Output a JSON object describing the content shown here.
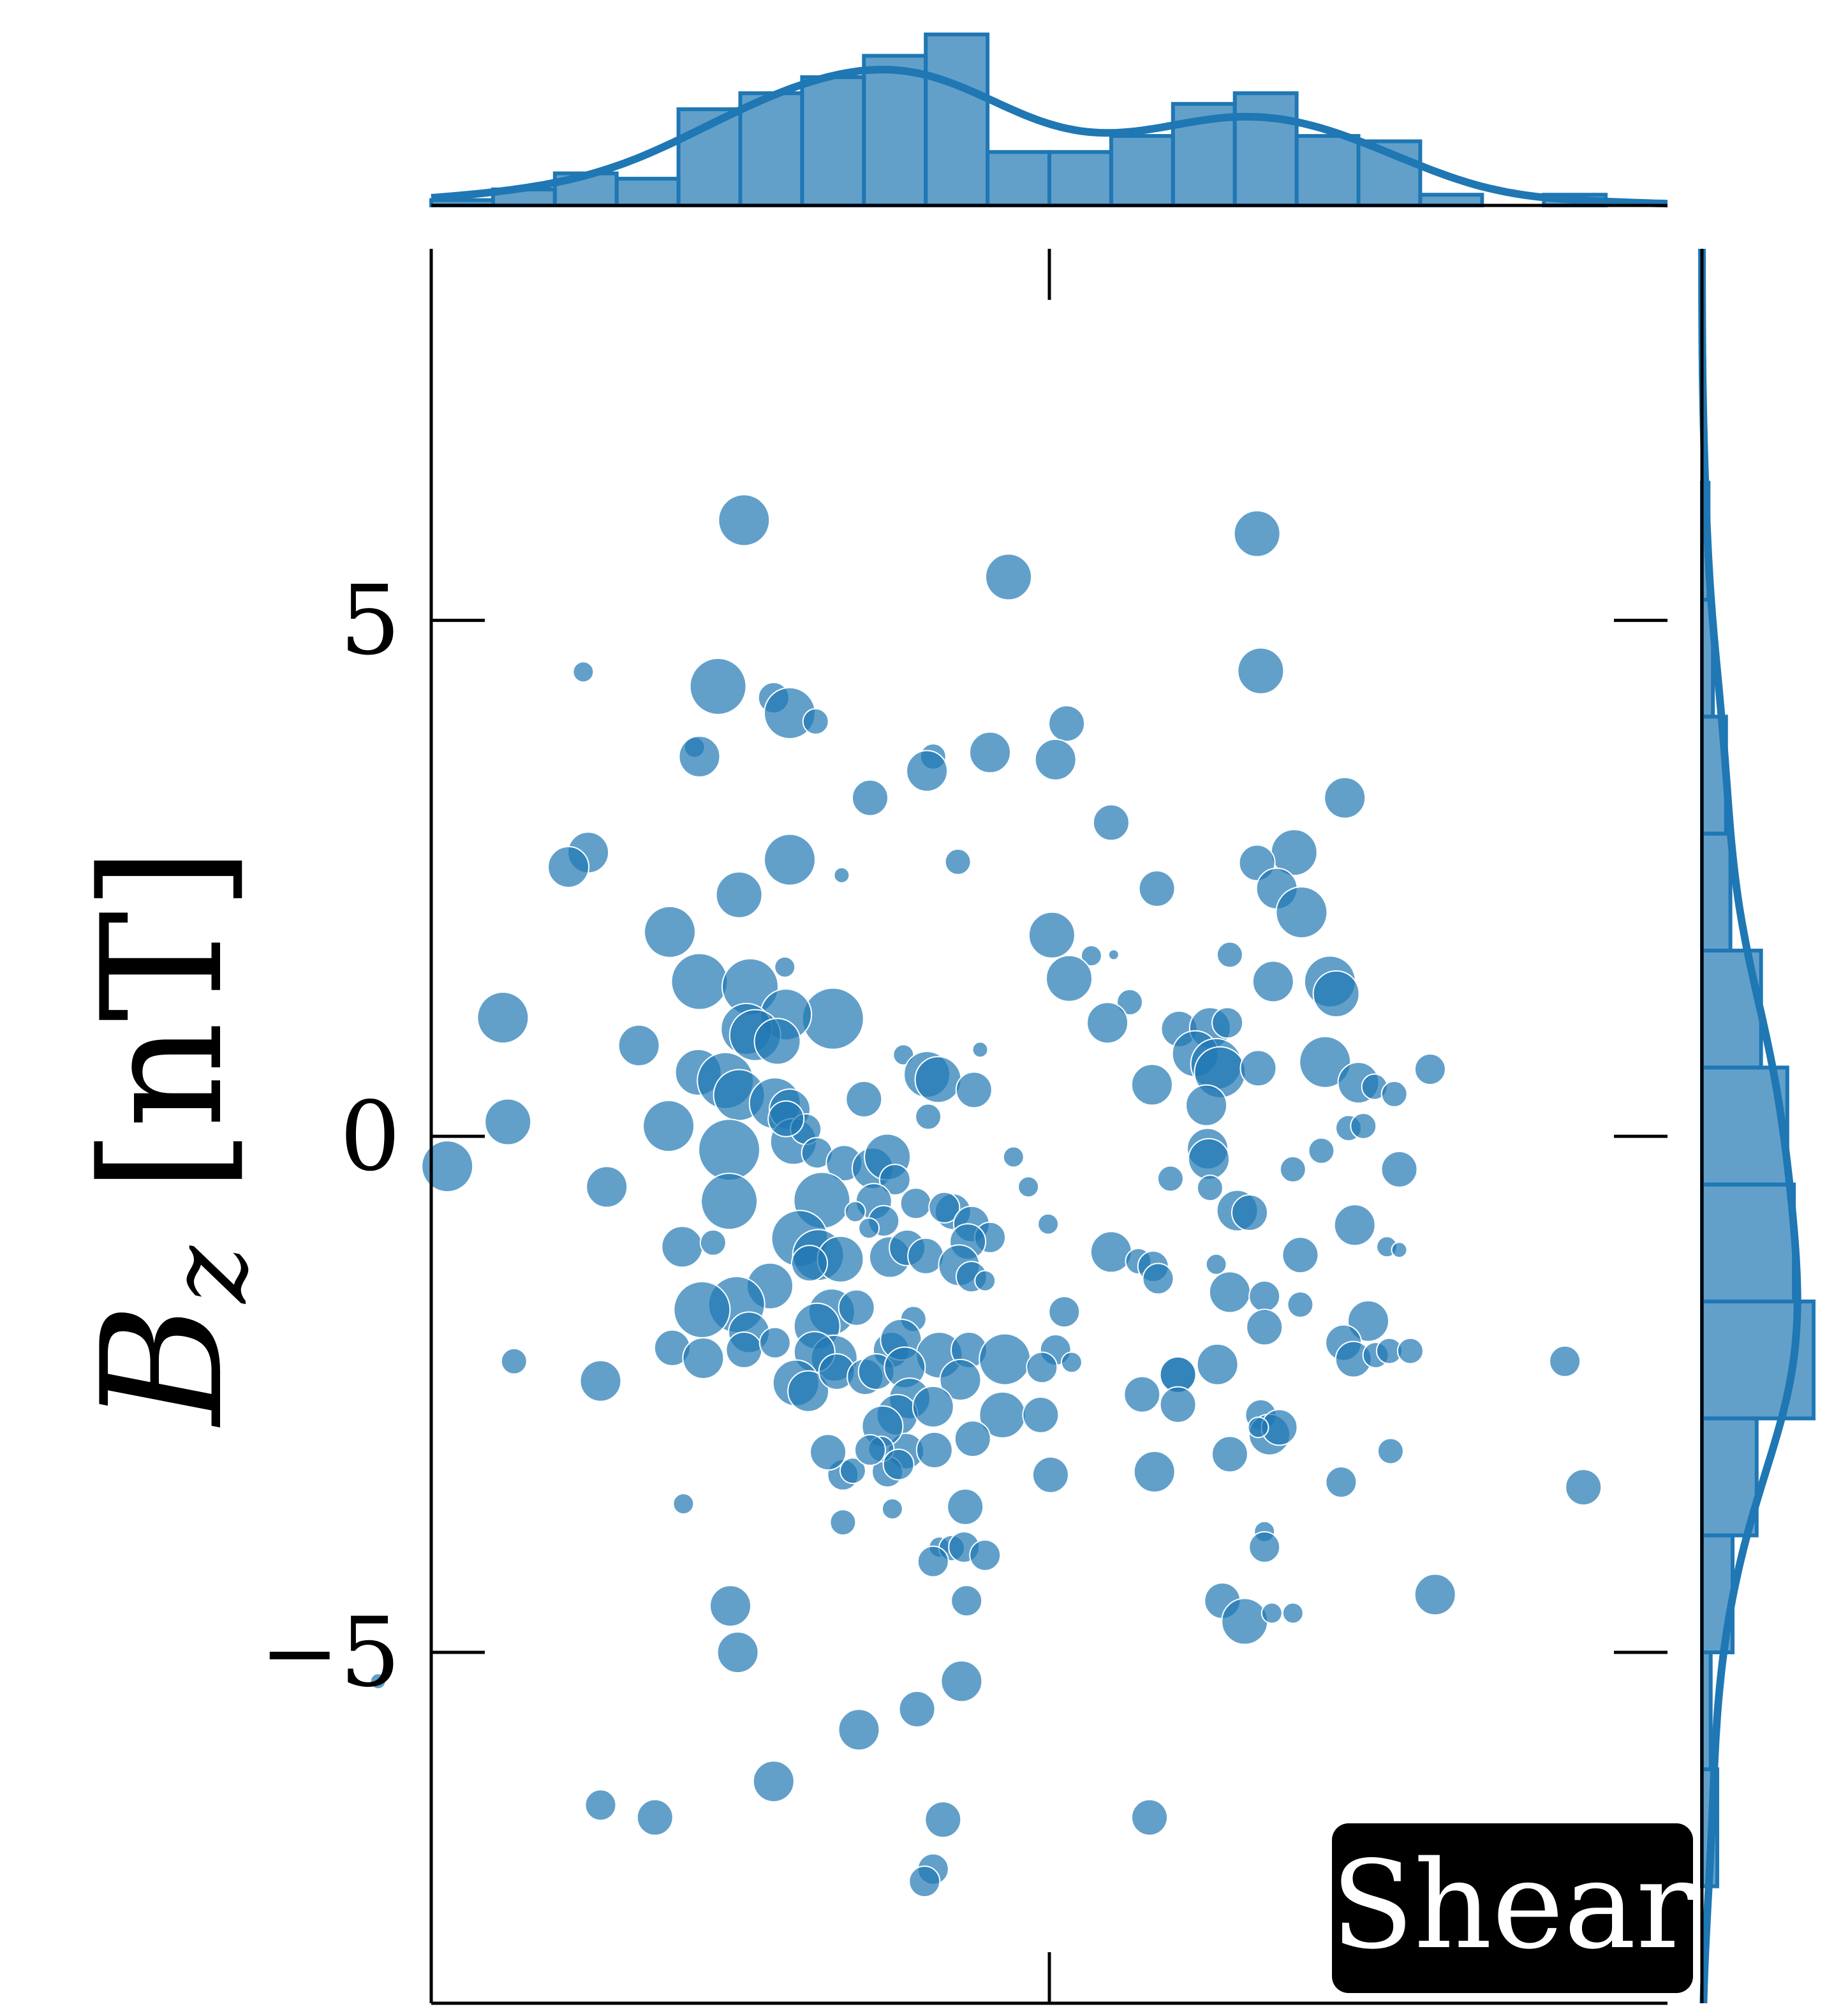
{
  "chart_data": {
    "type": "scatter",
    "ylabel": "B_z [nT]",
    "ylabel_parts": {
      "base": "B",
      "sub": "z",
      "unit": "[nT]"
    },
    "ylim": [
      -8.4,
      8.6
    ],
    "xlim": [
      -0.5,
      0.5
    ],
    "y_ticks": [
      5,
      0,
      -5
    ],
    "y_tick_labels": [
      "5",
      "0",
      "−5"
    ],
    "badge": "Shear",
    "marginal_x": {
      "type": "histogram+kde",
      "bins": 20
    },
    "marginal_y": {
      "type": "histogram+kde",
      "bins": 15
    },
    "colors": {
      "points": "#1f77b4",
      "badge_bg": "#000000",
      "badge_text": "#ffffff"
    },
    "points": [
      {
        "x": -0.247,
        "y": 5.97,
        "s": 0.9
      },
      {
        "x": 0.168,
        "y": 5.84,
        "s": 0.8
      },
      {
        "x": -0.033,
        "y": 5.42,
        "s": 0.8
      },
      {
        "x": -0.377,
        "y": 4.5,
        "s": 0.3
      },
      {
        "x": -0.268,
        "y": 4.36,
        "s": 1.0
      },
      {
        "x": 0.171,
        "y": 4.51,
        "s": 0.8
      },
      {
        "x": -0.223,
        "y": 4.25,
        "s": 0.5
      },
      {
        "x": -0.21,
        "y": 4.1,
        "s": 0.9
      },
      {
        "x": -0.189,
        "y": 4.02,
        "s": 0.4
      },
      {
        "x": 0.014,
        "y": 4.0,
        "s": 0.6
      },
      {
        "x": -0.287,
        "y": 3.77,
        "s": 0.3
      },
      {
        "x": -0.283,
        "y": 3.68,
        "s": 0.7
      },
      {
        "x": -0.094,
        "y": 3.68,
        "s": 0.4
      },
      {
        "x": -0.048,
        "y": 3.72,
        "s": 0.7
      },
      {
        "x": -0.099,
        "y": 3.54,
        "s": 0.7
      },
      {
        "x": 0.005,
        "y": 3.65,
        "s": 0.7
      },
      {
        "x": -0.145,
        "y": 3.28,
        "s": 0.6
      },
      {
        "x": 0.239,
        "y": 3.28,
        "s": 0.7
      },
      {
        "x": 0.05,
        "y": 3.04,
        "s": 0.6
      },
      {
        "x": -0.21,
        "y": 2.68,
        "s": 0.9
      },
      {
        "x": -0.373,
        "y": 2.75,
        "s": 0.7
      },
      {
        "x": -0.389,
        "y": 2.61,
        "s": 0.7
      },
      {
        "x": -0.074,
        "y": 2.66,
        "s": 0.4
      },
      {
        "x": 0.198,
        "y": 2.75,
        "s": 0.8
      },
      {
        "x": 0.168,
        "y": 2.65,
        "s": 0.6
      },
      {
        "x": -0.168,
        "y": 2.53,
        "s": 0.2
      },
      {
        "x": -0.251,
        "y": 2.34,
        "s": 0.8
      },
      {
        "x": 0.087,
        "y": 2.4,
        "s": 0.6
      },
      {
        "x": 0.184,
        "y": 2.4,
        "s": 0.7
      },
      {
        "x": 0.204,
        "y": 2.17,
        "s": 0.9
      },
      {
        "x": -0.307,
        "y": 1.98,
        "s": 0.9
      },
      {
        "x": 0.002,
        "y": 1.95,
        "s": 0.8
      },
      {
        "x": 0.034,
        "y": 1.75,
        "s": 0.3
      },
      {
        "x": 0.052,
        "y": 1.76,
        "s": 0.1
      },
      {
        "x": 0.146,
        "y": 1.76,
        "s": 0.4
      },
      {
        "x": -0.214,
        "y": 1.64,
        "s": 0.3
      },
      {
        "x": -0.283,
        "y": 1.5,
        "s": 1.0
      },
      {
        "x": -0.242,
        "y": 1.45,
        "s": 1.0
      },
      {
        "x": 0.016,
        "y": 1.53,
        "s": 0.8
      },
      {
        "x": 0.181,
        "y": 1.5,
        "s": 0.7
      },
      {
        "x": 0.227,
        "y": 1.5,
        "s": 0.9
      },
      {
        "x": 0.232,
        "y": 1.38,
        "s": 0.8
      },
      {
        "x": -0.175,
        "y": 1.14,
        "s": 1.1
      },
      {
        "x": -0.213,
        "y": 1.18,
        "s": 0.9
      },
      {
        "x": -0.245,
        "y": 1.04,
        "s": 0.9
      },
      {
        "x": -0.442,
        "y": 1.15,
        "s": 0.9
      },
      {
        "x": 0.065,
        "y": 1.3,
        "s": 0.4
      },
      {
        "x": 0.047,
        "y": 1.1,
        "s": 0.7
      },
      {
        "x": 0.105,
        "y": 1.04,
        "s": 0.6
      },
      {
        "x": 0.13,
        "y": 1.05,
        "s": 0.7
      },
      {
        "x": 0.144,
        "y": 1.1,
        "s": 0.5
      },
      {
        "x": -0.238,
        "y": 0.98,
        "s": 0.9
      },
      {
        "x": -0.22,
        "y": 0.92,
        "s": 0.8
      },
      {
        "x": -0.118,
        "y": 0.79,
        "s": 0.3
      },
      {
        "x": -0.056,
        "y": 0.84,
        "s": 0.2
      },
      {
        "x": -0.332,
        "y": 0.88,
        "s": 0.7
      },
      {
        "x": -0.284,
        "y": 0.62,
        "s": 0.8
      },
      {
        "x": -0.262,
        "y": 0.54,
        "s": 1.0
      },
      {
        "x": -0.099,
        "y": 0.6,
        "s": 0.8
      },
      {
        "x": -0.09,
        "y": 0.55,
        "s": 0.8
      },
      {
        "x": -0.061,
        "y": 0.45,
        "s": 0.6
      },
      {
        "x": 0.083,
        "y": 0.5,
        "s": 0.7
      },
      {
        "x": 0.118,
        "y": 0.8,
        "s": 0.8
      },
      {
        "x": 0.135,
        "y": 0.7,
        "s": 0.9
      },
      {
        "x": 0.138,
        "y": 0.62,
        "s": 0.9
      },
      {
        "x": 0.169,
        "y": 0.66,
        "s": 0.6
      },
      {
        "x": 0.223,
        "y": 0.72,
        "s": 0.9
      },
      {
        "x": 0.25,
        "y": 0.52,
        "s": 0.7
      },
      {
        "x": 0.263,
        "y": 0.48,
        "s": 0.4
      },
      {
        "x": 0.279,
        "y": 0.41,
        "s": 0.4
      },
      {
        "x": 0.308,
        "y": 0.65,
        "s": 0.5
      },
      {
        "x": -0.438,
        "y": 0.14,
        "s": 0.8
      },
      {
        "x": -0.308,
        "y": 0.1,
        "s": 0.9
      },
      {
        "x": -0.251,
        "y": 0.4,
        "s": 0.9
      },
      {
        "x": -0.222,
        "y": 0.32,
        "s": 0.9
      },
      {
        "x": -0.21,
        "y": 0.26,
        "s": 0.7
      },
      {
        "x": -0.15,
        "y": 0.36,
        "s": 0.6
      },
      {
        "x": -0.098,
        "y": 0.19,
        "s": 0.4
      },
      {
        "x": 0.127,
        "y": 0.3,
        "s": 0.7
      },
      {
        "x": 0.242,
        "y": 0.08,
        "s": 0.4
      },
      {
        "x": 0.254,
        "y": 0.1,
        "s": 0.4
      },
      {
        "x": -0.259,
        "y": -0.13,
        "s": 1.1
      },
      {
        "x": -0.207,
        "y": -0.05,
        "s": 0.8
      },
      {
        "x": -0.197,
        "y": 0.07,
        "s": 0.5
      },
      {
        "x": -0.213,
        "y": 0.17,
        "s": 0.6
      },
      {
        "x": -0.188,
        "y": -0.16,
        "s": 0.5
      },
      {
        "x": -0.166,
        "y": -0.26,
        "s": 0.6
      },
      {
        "x": -0.143,
        "y": -0.31,
        "s": 0.7
      },
      {
        "x": -0.131,
        "y": -0.2,
        "s": 0.8
      },
      {
        "x": -0.125,
        "y": -0.42,
        "s": 0.5
      },
      {
        "x": -0.029,
        "y": -0.2,
        "s": 0.3
      },
      {
        "x": -0.017,
        "y": -0.49,
        "s": 0.3
      },
      {
        "x": 0.128,
        "y": -0.12,
        "s": 0.7
      },
      {
        "x": 0.129,
        "y": -0.22,
        "s": 0.7
      },
      {
        "x": 0.13,
        "y": -0.5,
        "s": 0.4
      },
      {
        "x": 0.197,
        "y": -0.32,
        "s": 0.4
      },
      {
        "x": 0.22,
        "y": -0.14,
        "s": 0.4
      },
      {
        "x": 0.283,
        "y": -0.32,
        "s": 0.6
      },
      {
        "x": 0.098,
        "y": -0.41,
        "s": 0.4
      },
      {
        "x": -0.487,
        "y": -0.29,
        "s": 0.9
      },
      {
        "x": -0.358,
        "y": -0.49,
        "s": 0.7
      },
      {
        "x": -0.259,
        "y": -0.63,
        "s": 1.0
      },
      {
        "x": -0.184,
        "y": -0.62,
        "s": 1.0
      },
      {
        "x": -0.142,
        "y": -0.63,
        "s": 0.6
      },
      {
        "x": -0.108,
        "y": -0.65,
        "s": 0.5
      },
      {
        "x": -0.078,
        "y": -0.73,
        "s": 0.6
      },
      {
        "x": -0.085,
        "y": -0.69,
        "s": 0.5
      },
      {
        "x": -0.134,
        "y": -0.82,
        "s": 0.5
      },
      {
        "x": -0.146,
        "y": -0.89,
        "s": 0.3
      },
      {
        "x": -0.157,
        "y": -0.73,
        "s": 0.3
      },
      {
        "x": -0.063,
        "y": -0.85,
        "s": 0.6
      },
      {
        "x": -0.048,
        "y": -0.98,
        "s": 0.5
      },
      {
        "x": -0.001,
        "y": -0.85,
        "s": 0.3
      },
      {
        "x": 0.152,
        "y": -0.72,
        "s": 0.7
      },
      {
        "x": 0.162,
        "y": -0.74,
        "s": 0.6
      },
      {
        "x": 0.247,
        "y": -0.86,
        "s": 0.7
      },
      {
        "x": 0.273,
        "y": -1.07,
        "s": 0.3
      },
      {
        "x": 0.283,
        "y": -1.1,
        "s": 0.2
      },
      {
        "x": -0.297,
        "y": -1.07,
        "s": 0.7
      },
      {
        "x": -0.272,
        "y": -1.03,
        "s": 0.4
      },
      {
        "x": -0.202,
        "y": -0.99,
        "s": 1.0
      },
      {
        "x": -0.187,
        "y": -1.15,
        "s": 0.9
      },
      {
        "x": -0.169,
        "y": -1.19,
        "s": 0.8
      },
      {
        "x": -0.194,
        "y": -1.23,
        "s": 0.6
      },
      {
        "x": -0.129,
        "y": -1.17,
        "s": 0.7
      },
      {
        "x": -0.115,
        "y": -1.08,
        "s": 0.6
      },
      {
        "x": -0.1,
        "y": -1.16,
        "s": 0.6
      },
      {
        "x": -0.066,
        "y": -1.02,
        "s": 0.6
      },
      {
        "x": -0.073,
        "y": -1.25,
        "s": 0.7
      },
      {
        "x": -0.063,
        "y": -1.36,
        "s": 0.5
      },
      {
        "x": 0.05,
        "y": -1.12,
        "s": 0.7
      },
      {
        "x": 0.072,
        "y": -1.21,
        "s": 0.4
      },
      {
        "x": 0.084,
        "y": -1.26,
        "s": 0.5
      },
      {
        "x": 0.088,
        "y": -1.38,
        "s": 0.5
      },
      {
        "x": 0.135,
        "y": -1.24,
        "s": 0.3
      },
      {
        "x": 0.203,
        "y": -1.15,
        "s": 0.6
      },
      {
        "x": -0.226,
        "y": -1.45,
        "s": 0.8
      },
      {
        "x": -0.253,
        "y": -1.63,
        "s": 1.0
      },
      {
        "x": -0.176,
        "y": -1.7,
        "s": 0.8
      },
      {
        "x": -0.156,
        "y": -1.66,
        "s": 0.6
      },
      {
        "x": -0.188,
        "y": -1.84,
        "s": 0.8
      },
      {
        "x": -0.243,
        "y": -1.9,
        "s": 0.7
      },
      {
        "x": -0.281,
        "y": -1.68,
        "s": 1.0
      },
      {
        "x": -0.11,
        "y": -1.77,
        "s": 0.4
      },
      {
        "x": -0.052,
        "y": -1.4,
        "s": 0.3
      },
      {
        "x": 0.012,
        "y": -1.7,
        "s": 0.5
      },
      {
        "x": 0.146,
        "y": -1.51,
        "s": 0.7
      },
      {
        "x": 0.174,
        "y": -1.55,
        "s": 0.5
      },
      {
        "x": 0.174,
        "y": -1.85,
        "s": 0.6
      },
      {
        "x": 0.203,
        "y": -1.63,
        "s": 0.4
      },
      {
        "x": 0.258,
        "y": -1.79,
        "s": 0.7
      },
      {
        "x": -0.305,
        "y": -2.05,
        "s": 0.6
      },
      {
        "x": -0.28,
        "y": -2.15,
        "s": 0.7
      },
      {
        "x": -0.247,
        "y": -2.07,
        "s": 0.6
      },
      {
        "x": -0.222,
        "y": -2.0,
        "s": 0.5
      },
      {
        "x": -0.174,
        "y": -2.15,
        "s": 0.8
      },
      {
        "x": -0.19,
        "y": -2.09,
        "s": 0.7
      },
      {
        "x": -0.128,
        "y": -2.07,
        "s": 0.6
      },
      {
        "x": -0.12,
        "y": -1.97,
        "s": 0.7
      },
      {
        "x": -0.089,
        "y": -2.12,
        "s": 0.8
      },
      {
        "x": -0.065,
        "y": -2.07,
        "s": 0.6
      },
      {
        "x": -0.036,
        "y": -2.16,
        "s": 0.9
      },
      {
        "x": 0.005,
        "y": -2.07,
        "s": 0.5
      },
      {
        "x": -0.006,
        "y": -2.24,
        "s": 0.5
      },
      {
        "x": 0.018,
        "y": -2.19,
        "s": 0.3
      },
      {
        "x": 0.104,
        "y": -2.31,
        "s": 0.6
      },
      {
        "x": 0.104,
        "y": -2.31,
        "s": 0.6
      },
      {
        "x": 0.136,
        "y": -2.21,
        "s": 0.7
      },
      {
        "x": 0.238,
        "y": -2.0,
        "s": 0.6
      },
      {
        "x": 0.246,
        "y": -2.16,
        "s": 0.6
      },
      {
        "x": 0.264,
        "y": -2.12,
        "s": 0.4
      },
      {
        "x": 0.275,
        "y": -2.08,
        "s": 0.4
      },
      {
        "x": 0.292,
        "y": -2.08,
        "s": 0.4
      },
      {
        "x": -0.363,
        "y": -2.37,
        "s": 0.7
      },
      {
        "x": -0.205,
        "y": -2.39,
        "s": 0.8
      },
      {
        "x": -0.195,
        "y": -2.47,
        "s": 0.7
      },
      {
        "x": -0.172,
        "y": -2.28,
        "s": 0.6
      },
      {
        "x": -0.149,
        "y": -2.33,
        "s": 0.6
      },
      {
        "x": -0.14,
        "y": -2.28,
        "s": 0.6
      },
      {
        "x": -0.117,
        "y": -2.24,
        "s": 0.7
      },
      {
        "x": -0.072,
        "y": -2.36,
        "s": 0.7
      },
      {
        "x": -0.113,
        "y": -2.54,
        "s": 0.7
      },
      {
        "x": -0.123,
        "y": -2.7,
        "s": 0.7
      },
      {
        "x": -0.094,
        "y": -2.62,
        "s": 0.7
      },
      {
        "x": -0.038,
        "y": -2.7,
        "s": 0.8
      },
      {
        "x": -0.007,
        "y": -2.7,
        "s": 0.6
      },
      {
        "x": 0.075,
        "y": -2.5,
        "s": 0.6
      },
      {
        "x": 0.104,
        "y": -2.6,
        "s": 0.6
      },
      {
        "x": 0.171,
        "y": -2.7,
        "s": 0.5
      },
      {
        "x": 0.178,
        "y": -2.89,
        "s": 0.7
      },
      {
        "x": 0.186,
        "y": -2.82,
        "s": 0.6
      },
      {
        "x": 0.169,
        "y": -2.82,
        "s": 0.3
      },
      {
        "x": -0.433,
        "y": -2.18,
        "s": 0.4
      },
      {
        "x": 0.417,
        "y": -2.18,
        "s": 0.5
      },
      {
        "x": -0.116,
        "y": -3.05,
        "s": 0.6
      },
      {
        "x": -0.135,
        "y": -2.81,
        "s": 0.7
      },
      {
        "x": -0.167,
        "y": -3.28,
        "s": 0.5
      },
      {
        "x": -0.159,
        "y": -3.24,
        "s": 0.4
      },
      {
        "x": -0.131,
        "y": -3.25,
        "s": 0.5
      },
      {
        "x": -0.136,
        "y": -3.03,
        "s": 0.4
      },
      {
        "x": -0.122,
        "y": -3.18,
        "s": 0.5
      },
      {
        "x": -0.145,
        "y": -3.04,
        "s": 0.5
      },
      {
        "x": -0.179,
        "y": -3.06,
        "s": 0.6
      },
      {
        "x": -0.093,
        "y": -3.04,
        "s": 0.6
      },
      {
        "x": -0.062,
        "y": -2.93,
        "s": 0.6
      },
      {
        "x": 0.001,
        "y": -3.28,
        "s": 0.6
      },
      {
        "x": 0.085,
        "y": -3.25,
        "s": 0.7
      },
      {
        "x": 0.146,
        "y": -3.08,
        "s": 0.6
      },
      {
        "x": 0.236,
        "y": -3.35,
        "s": 0.5
      },
      {
        "x": 0.276,
        "y": -3.05,
        "s": 0.4
      },
      {
        "x": -0.296,
        "y": -3.56,
        "s": 0.3
      },
      {
        "x": -0.167,
        "y": -3.74,
        "s": 0.4
      },
      {
        "x": -0.127,
        "y": -3.61,
        "s": 0.3
      },
      {
        "x": -0.068,
        "y": -3.59,
        "s": 0.6
      },
      {
        "x": -0.089,
        "y": -3.98,
        "s": 0.3
      },
      {
        "x": -0.079,
        "y": -3.99,
        "s": 0.4
      },
      {
        "x": -0.069,
        "y": -3.98,
        "s": 0.5
      },
      {
        "x": -0.052,
        "y": -4.06,
        "s": 0.5
      },
      {
        "x": -0.094,
        "y": -4.12,
        "s": 0.5
      },
      {
        "x": 0.174,
        "y": -3.83,
        "s": 0.3
      },
      {
        "x": 0.174,
        "y": -3.98,
        "s": 0.5
      },
      {
        "x": 0.432,
        "y": -3.4,
        "s": 0.6
      },
      {
        "x": -0.258,
        "y": -4.55,
        "s": 0.7
      },
      {
        "x": -0.252,
        "y": -5.0,
        "s": 0.7
      },
      {
        "x": -0.067,
        "y": -4.5,
        "s": 0.5
      },
      {
        "x": 0.14,
        "y": -4.5,
        "s": 0.6
      },
      {
        "x": 0.158,
        "y": -4.7,
        "s": 0.8
      },
      {
        "x": 0.18,
        "y": -4.62,
        "s": 0.3
      },
      {
        "x": 0.197,
        "y": -4.62,
        "s": 0.3
      },
      {
        "x": 0.312,
        "y": -4.44,
        "s": 0.7
      },
      {
        "x": -0.543,
        "y": -5.28,
        "s": 0.2
      },
      {
        "x": -0.071,
        "y": -5.28,
        "s": 0.7
      },
      {
        "x": -0.107,
        "y": -5.55,
        "s": 0.6
      },
      {
        "x": -0.154,
        "y": -5.75,
        "s": 0.7
      },
      {
        "x": -0.223,
        "y": -6.25,
        "s": 0.7
      },
      {
        "x": -0.363,
        "y": -6.48,
        "s": 0.5
      },
      {
        "x": -0.319,
        "y": -6.6,
        "s": 0.6
      },
      {
        "x": -0.086,
        "y": -6.62,
        "s": 0.6
      },
      {
        "x": 0.081,
        "y": -6.6,
        "s": 0.6
      },
      {
        "x": -0.094,
        "y": -7.1,
        "s": 0.5
      },
      {
        "x": -0.101,
        "y": -7.22,
        "s": 0.5
      }
    ]
  }
}
